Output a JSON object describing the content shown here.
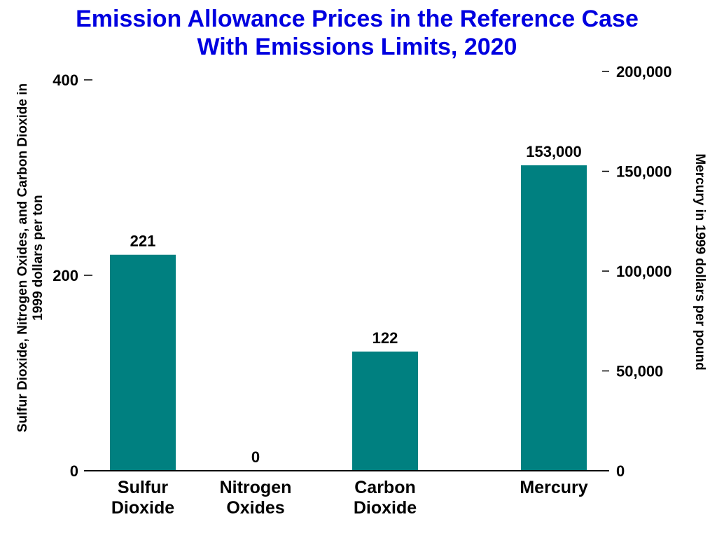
{
  "chart_data": {
    "type": "bar",
    "title": [
      "Emission Allowance Prices in the Reference Case",
      "With Emissions Limits, 2020"
    ],
    "categories": [
      {
        "lines": [
          "Sulfur",
          "Dioxide"
        ],
        "axis": "left"
      },
      {
        "lines": [
          "Nitrogen",
          "Oxides"
        ],
        "axis": "left"
      },
      {
        "lines": [
          "Carbon",
          "Dioxide"
        ],
        "axis": "left"
      },
      {
        "lines": [
          "Mercury"
        ],
        "axis": "right"
      }
    ],
    "values": [
      221,
      0,
      122,
      153000
    ],
    "data_labels": [
      "221",
      "0",
      "122",
      "153,000"
    ],
    "ylabel_left": [
      "Sulfur Dioxide, Nitrogen Oxides, and Carbon Dioxide in",
      "1999 dollars per ton"
    ],
    "ylabel_right": "Mercury in 1999 dollars per pound",
    "ylim_left": [
      0,
      400
    ],
    "ylim_right": [
      0,
      200000
    ],
    "yticks_left": [
      0,
      200,
      400
    ],
    "yticks_left_labels": [
      "0",
      "200",
      "400"
    ],
    "yticks_right": [
      0,
      50000,
      100000,
      150000,
      200000
    ],
    "yticks_right_labels": [
      "0",
      "50,000",
      "100,000",
      "150,000",
      "200,000"
    ],
    "bar_color": "#008080",
    "title_color": "#0000e0",
    "grid": false,
    "legend": "none"
  }
}
